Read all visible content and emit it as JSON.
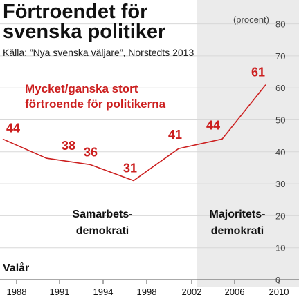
{
  "chart_data": {
    "type": "line",
    "title": [
      "Förtroendet för",
      "svenska politiker"
    ],
    "source": "Källa: ”Nya svenska väljare”, Norstedts 2013",
    "unit": "(procent)",
    "xlabel": "Valår",
    "ylim": [
      0,
      80
    ],
    "yticks": [
      0,
      10,
      20,
      30,
      40,
      50,
      60,
      70,
      80
    ],
    "x": [
      "1988",
      "1991",
      "1994",
      "1998",
      "2002",
      "2006",
      "2010"
    ],
    "series": [
      {
        "name": [
          "Mycket/ganska stort",
          "förtroende för politikerna"
        ],
        "values": [
          44,
          38,
          36,
          31,
          41,
          44,
          61
        ]
      }
    ],
    "periods": [
      {
        "label": [
          "Samarbets-",
          "demokrati"
        ],
        "shaded": false
      },
      {
        "label": [
          "Majoritets-",
          "demokrati"
        ],
        "shaded": true
      }
    ],
    "colors": {
      "line": "#cc1f1f",
      "shade": "#ebebeb",
      "grid": "#d8d8d8"
    },
    "grid": true
  }
}
